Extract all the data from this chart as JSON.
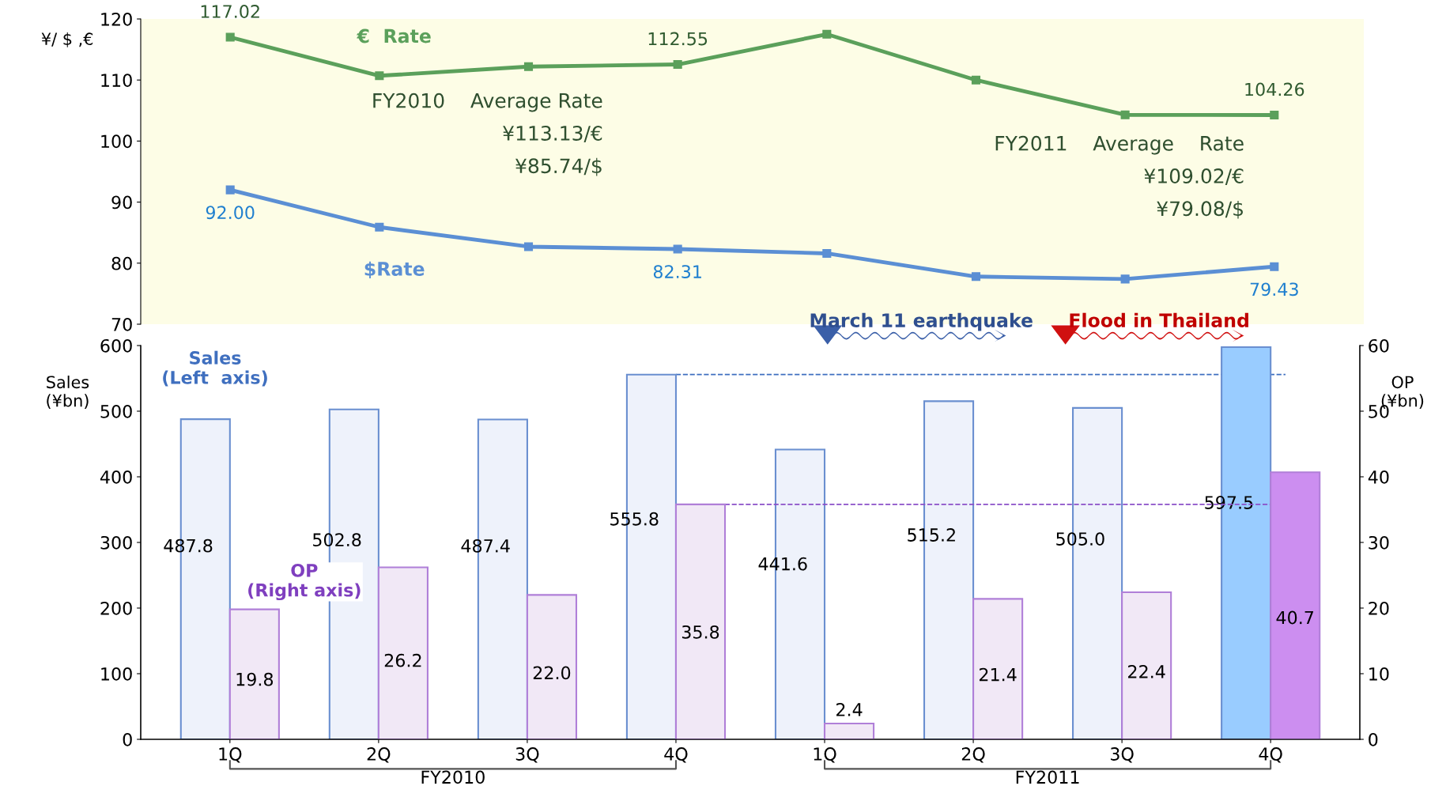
{
  "chart_data": [
    {
      "type": "line",
      "ylabel": "¥/ $ ,€",
      "categories": [
        null,
        null,
        null,
        null,
        null,
        null,
        null,
        null
      ],
      "ylim": [
        70,
        120
      ],
      "yticks": [
        70,
        80,
        90,
        100,
        110,
        120
      ],
      "grid": false,
      "legend": false,
      "marker": "square",
      "line_style": "solid",
      "series": [
        {
          "name": "€  Rate",
          "color": "#5ba05b",
          "values": [
            117.02,
            110.7,
            112.2,
            112.55,
            117.5,
            110.0,
            104.3,
            104.26
          ],
          "value_labels": [
            "117.02",
            null,
            null,
            "112.55",
            null,
            null,
            null,
            "104.26"
          ]
        },
        {
          "name": "$Rate",
          "color": "#5b8fd4",
          "values": [
            92.0,
            85.9,
            82.7,
            82.31,
            81.6,
            77.8,
            77.4,
            79.43
          ],
          "value_labels": [
            "92.00",
            null,
            null,
            "82.31",
            null,
            null,
            null,
            "79.43"
          ]
        }
      ],
      "annotations": [
        "FY2010    Average Rate\n¥113.13/€\n¥85.74/$",
        "FY2011    Average    Rate\n¥109.02/€\n¥79.08/$"
      ]
    },
    {
      "type": "bar",
      "ylabel": "Sales\n(¥bn)",
      "y2label": "OP\n(¥bn)",
      "categories": [
        "1Q",
        "2Q",
        "3Q",
        "4Q",
        "1Q",
        "2Q",
        "3Q",
        "4Q"
      ],
      "ylim": [
        0,
        600
      ],
      "yticks": [
        0,
        100,
        200,
        300,
        400,
        500,
        600
      ],
      "y2lim": [
        0,
        60
      ],
      "y2ticks": [
        0,
        10,
        20,
        30,
        40,
        50,
        60
      ],
      "grid": false,
      "legend": false,
      "series": [
        {
          "name": "Sales\n(Left  axis)",
          "value_labels": [
            "487.8",
            "502.8",
            "487.4",
            "555.8",
            "441.6",
            "515.2",
            "505.0",
            "597.5"
          ],
          "color": "#3f6fbf",
          "colors": [
            "#eef2fb",
            "#eef2fb",
            "#eef2fb",
            "#eef2fb",
            "#eef2fb",
            "#eef2fb",
            "#eef2fb",
            "#99ccff"
          ],
          "values": [
            487.8,
            502.8,
            487.4,
            555.8,
            441.6,
            515.2,
            505.0,
            597.5
          ]
        },
        {
          "name": "OP\n(Right axis)",
          "axis": "y2",
          "value_labels": [
            "19.8",
            "26.2",
            "22.0",
            "35.8",
            "2.4",
            "21.4",
            "22.4",
            "40.7"
          ],
          "color": "#7f3fbf",
          "colors": [
            "#f1e8f6",
            "#f1e8f6",
            "#f1e8f6",
            "#f1e8f6",
            "#f1e8f6",
            "#f1e8f6",
            "#f1e8f6",
            "#cc8ef0"
          ],
          "values": [
            19.8,
            26.2,
            22.0,
            35.8,
            2.4,
            21.4,
            22.4,
            40.7
          ]
        }
      ],
      "ref_lines": [
        {
          "axis": "y",
          "value": 555.8,
          "label": null,
          "color": "#3f6fbf",
          "line_style": "dashed"
        },
        {
          "axis": "y2",
          "value": 35.8,
          "label": null,
          "color": "#8a4fc8",
          "line_style": "dashed"
        }
      ],
      "annotations": [
        "March 11 earthquake",
        "Flood in Thailand",
        "FY2010",
        "FY2011"
      ]
    }
  ]
}
